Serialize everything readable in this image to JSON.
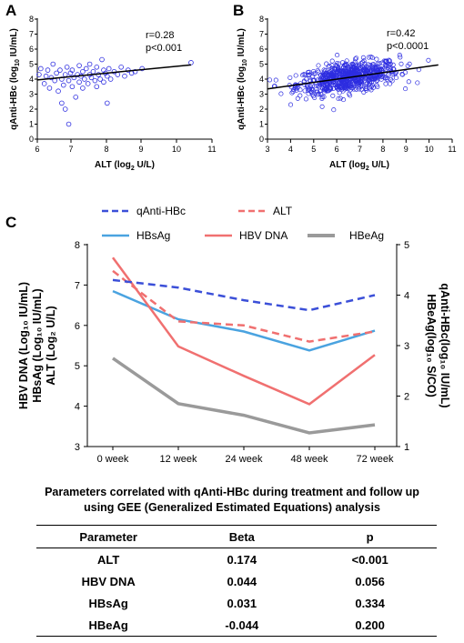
{
  "panel_a": {
    "letter": "A",
    "r_label": "r=0.28",
    "p_label": "p<0.001",
    "xlabel_main": "ALT (log",
    "xlabel_sub": "2",
    "xlabel_end": " U/L)",
    "ylabel_main": "qAnti-HBc (log",
    "ylabel_sub": "10",
    "ylabel_end": " IU/mL)",
    "x_ticks": [
      "6",
      "7",
      "8",
      "9",
      "10",
      "11"
    ],
    "y_ticks": [
      "0",
      "1",
      "2",
      "3",
      "4",
      "5",
      "6",
      "7",
      "8"
    ]
  },
  "panel_b": {
    "letter": "B",
    "r_label": "r=0.42",
    "p_label": "p<0.0001",
    "xlabel_main": "ALT (log",
    "xlabel_sub": "2",
    "xlabel_end": " U/L)",
    "ylabel_main": "qAnti-HBc (log",
    "ylabel_sub": "10",
    "ylabel_end": " IU/mL)",
    "x_ticks": [
      "3",
      "4",
      "5",
      "6",
      "7",
      "8",
      "9",
      "10",
      "11"
    ],
    "y_ticks": [
      "0",
      "1",
      "2",
      "3",
      "4",
      "5",
      "6",
      "7",
      "8"
    ]
  },
  "panel_c": {
    "letter": "C",
    "legend": {
      "qantihbc": "qAnti-HBc",
      "alt": "ALT",
      "hbsag": "HBsAg",
      "hbvdna": "HBV DNA",
      "hbeag": "HBeAg"
    },
    "left_axis_lines": [
      "HBV DNA (Log₁₀ IU/mL)",
      "HBsAg (Log₁₀ IU/mL)",
      "ALT (Log₂ U/L)"
    ],
    "right_axis_lines": [
      "HBeAg(log₁₀ S/CO)",
      "qAnti-HBc(log₁₀ IU/mL)"
    ],
    "x_ticks": [
      "0 week",
      "12 week",
      "24 week",
      "48 week",
      "72 week"
    ],
    "y_left_ticks": [
      "3",
      "4",
      "5",
      "6",
      "7",
      "8"
    ],
    "y_right_ticks": [
      "1",
      "2",
      "3",
      "4",
      "5"
    ]
  },
  "chart_data": [
    {
      "type": "scatter",
      "title": "",
      "xlabel": "ALT (log2 U/L)",
      "ylabel": "qAnti-HBc (log10 IU/mL)",
      "xlim": [
        6,
        11
      ],
      "ylim": [
        0,
        8
      ],
      "annotations": [
        "r=0.28",
        "p<0.001"
      ],
      "regression_line": {
        "x": [
          6,
          10.4
        ],
        "y": [
          3.95,
          4.95
        ]
      },
      "points": [
        [
          6.05,
          4.3
        ],
        [
          6.1,
          4.7
        ],
        [
          6.2,
          3.7
        ],
        [
          6.25,
          4.2
        ],
        [
          6.3,
          4.6
        ],
        [
          6.35,
          3.4
        ],
        [
          6.4,
          4.1
        ],
        [
          6.45,
          5.0
        ],
        [
          6.5,
          3.9
        ],
        [
          6.55,
          4.4
        ],
        [
          6.6,
          3.2
        ],
        [
          6.65,
          4.6
        ],
        [
          6.7,
          2.4
        ],
        [
          6.7,
          4.0
        ],
        [
          6.75,
          3.6
        ],
        [
          6.8,
          2.0
        ],
        [
          6.8,
          4.3
        ],
        [
          6.85,
          4.8
        ],
        [
          6.9,
          3.9
        ],
        [
          6.9,
          1.0
        ],
        [
          6.95,
          4.4
        ],
        [
          7.0,
          3.5
        ],
        [
          7.0,
          4.6
        ],
        [
          7.05,
          4.1
        ],
        [
          7.1,
          2.8
        ],
        [
          7.15,
          4.3
        ],
        [
          7.2,
          3.8
        ],
        [
          7.2,
          4.9
        ],
        [
          7.25,
          4.2
        ],
        [
          7.3,
          3.4
        ],
        [
          7.3,
          4.5
        ],
        [
          7.35,
          4.0
        ],
        [
          7.4,
          4.7
        ],
        [
          7.45,
          3.7
        ],
        [
          7.5,
          4.3
        ],
        [
          7.5,
          5.0
        ],
        [
          7.55,
          4.1
        ],
        [
          7.6,
          4.5
        ],
        [
          7.65,
          3.9
        ],
        [
          7.7,
          4.8
        ],
        [
          7.7,
          3.5
        ],
        [
          7.75,
          4.3
        ],
        [
          7.8,
          4.0
        ],
        [
          7.85,
          5.3
        ],
        [
          7.9,
          4.6
        ],
        [
          7.9,
          3.8
        ],
        [
          7.95,
          4.4
        ],
        [
          8.0,
          4.2
        ],
        [
          8.0,
          2.4
        ],
        [
          8.05,
          4.7
        ],
        [
          8.1,
          4.0
        ],
        [
          8.2,
          4.5
        ],
        [
          8.3,
          4.3
        ],
        [
          8.4,
          4.8
        ],
        [
          8.5,
          4.2
        ],
        [
          8.6,
          4.6
        ],
        [
          8.7,
          4.4
        ],
        [
          8.8,
          4.5
        ],
        [
          9.0,
          4.7
        ],
        [
          10.4,
          5.1
        ]
      ]
    },
    {
      "type": "scatter",
      "title": "",
      "xlabel": "ALT (log2 U/L)",
      "ylabel": "qAnti-HBc (log10 IU/mL)",
      "xlim": [
        3,
        11
      ],
      "ylim": [
        0,
        8
      ],
      "annotations": [
        "r=0.42",
        "p<0.0001"
      ],
      "regression_line": {
        "x": [
          3.0,
          10.4
        ],
        "y": [
          3.35,
          4.95
        ]
      },
      "point_cloud": {
        "count": 700,
        "x_center": 6.5,
        "x_sd": 1.1,
        "x_range": [
          3.1,
          10.4
        ],
        "slope": 0.216,
        "intercept": 2.7,
        "y_sd": 0.5,
        "y_range": [
          1.1,
          5.6
        ]
      }
    },
    {
      "type": "line",
      "title": "",
      "categories": [
        "0 week",
        "12 week",
        "24 week",
        "48 week",
        "72 week"
      ],
      "ylabel_left": "HBV DNA (Log10 IU/mL) / HBsAg (Log10 IU/mL) / ALT (Log2 U/L)",
      "ylabel_right": "HBeAg(log10 S/CO) / qAnti-HBc(log10 IU/mL)",
      "ylim_left": [
        3,
        8
      ],
      "ylim_right": [
        1,
        5
      ],
      "series": [
        {
          "name": "qAnti-HBc",
          "axis": "right",
          "style": "dashed",
          "color": "#3b4fd8",
          "values": [
            4.3,
            4.15,
            3.9,
            3.7,
            4.0
          ]
        },
        {
          "name": "ALT",
          "axis": "left",
          "style": "dashed",
          "color": "#f07070",
          "values": [
            7.35,
            6.1,
            6.0,
            5.6,
            5.85
          ]
        },
        {
          "name": "HBsAg",
          "axis": "left",
          "style": "solid",
          "color": "#4aa3e0",
          "values": [
            6.85,
            6.15,
            5.85,
            5.38,
            5.87
          ]
        },
        {
          "name": "HBV DNA",
          "axis": "left",
          "style": "solid",
          "color": "#f07070",
          "values": [
            7.68,
            5.48,
            4.75,
            4.05,
            5.27
          ]
        },
        {
          "name": "HBeAg",
          "axis": "right",
          "style": "solid",
          "color": "#9a9a9a",
          "values": [
            2.75,
            1.85,
            1.62,
            1.27,
            1.43
          ]
        }
      ],
      "legend_position": "top"
    }
  ],
  "gee_table": {
    "title_line1": "Parameters correlated with qAnti-HBc during treatment and follow up",
    "title_line2": "using GEE (Generalized Estimated Equations) analysis",
    "headers": [
      "Parameter",
      "Beta",
      "p"
    ],
    "rows": [
      [
        "ALT",
        "0.174",
        "<0.001"
      ],
      [
        "HBV DNA",
        "0.044",
        "0.056"
      ],
      [
        "HBsAg",
        "0.031",
        "0.334"
      ],
      [
        "HBeAg",
        "-0.044",
        "0.200"
      ]
    ]
  }
}
